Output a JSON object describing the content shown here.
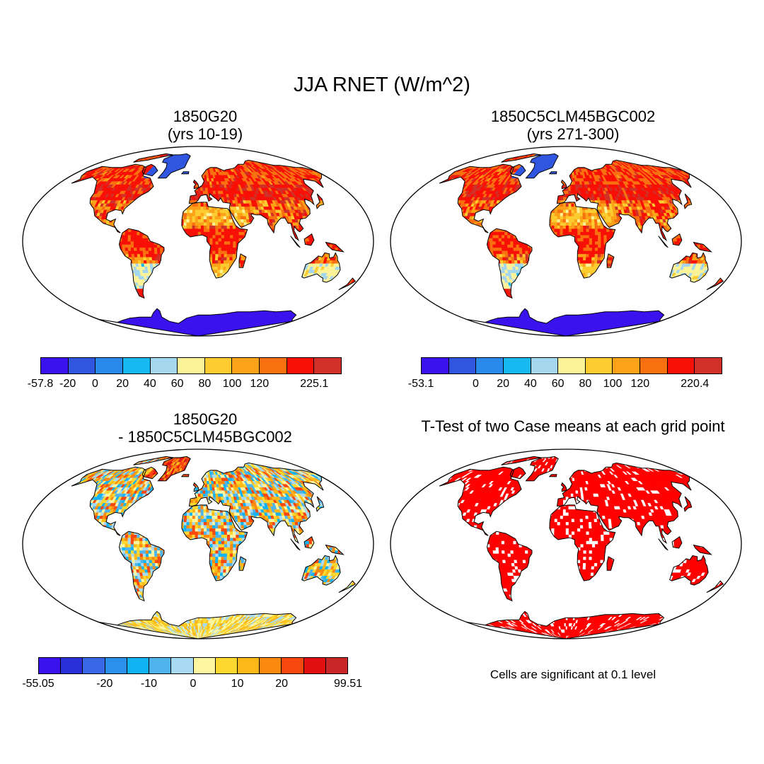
{
  "figure": {
    "title": "JJA RNET (W/m^2)",
    "panels": [
      {
        "title_line1": "1850G20",
        "title_line2": "(yrs 10-19)",
        "palette": [
          "#3a12ee",
          "#3056e0",
          "#2a8aec",
          "#18b8f2",
          "#a4d6ee",
          "#fcf298",
          "#fccc30",
          "#fca218",
          "#f87010",
          "#f81006",
          "#d03028"
        ],
        "labels": [
          "-57.8",
          "-20",
          "0",
          "20",
          "40",
          "60",
          "80",
          "100",
          "120",
          "225.1"
        ],
        "label_edges": [
          0,
          1,
          2,
          3,
          4,
          5,
          6,
          7,
          8,
          10
        ]
      },
      {
        "title_line1": "1850C5CLM45BGC002",
        "title_line2": "(yrs 271-300)",
        "palette": [
          "#3a12ee",
          "#3056e0",
          "#2a8aec",
          "#18b8f2",
          "#a4d6ee",
          "#fcf298",
          "#fccc30",
          "#fca218",
          "#f87010",
          "#f81006",
          "#d03028"
        ],
        "labels": [
          "-53.1",
          "0",
          "20",
          "40",
          "60",
          "80",
          "100",
          "120",
          "220.4"
        ],
        "label_edges": [
          0,
          2,
          3,
          4,
          5,
          6,
          7,
          8,
          10
        ]
      },
      {
        "title_line1": "1850G20",
        "title_line2": "- 1850C5CLM45BGC002",
        "palette": [
          "#3a12ee",
          "#2a30d8",
          "#3868e6",
          "#2a90ec",
          "#10b4f4",
          "#50b4ec",
          "#a8daf4",
          "#fcf6a0",
          "#fcd830",
          "#fcb818",
          "#fc8a10",
          "#f84810",
          "#e01010",
          "#c82828"
        ],
        "labels": [
          "-55.05",
          "-20",
          "-10",
          "0",
          "10",
          "20",
          "99.51"
        ],
        "label_edges": [
          0,
          3,
          5,
          7,
          9,
          11,
          14
        ]
      },
      {
        "title": "T-Test of two Case means at each grid point",
        "note": "Cells are significant at 0.1 level",
        "significant_color": "#ff0000"
      }
    ]
  }
}
